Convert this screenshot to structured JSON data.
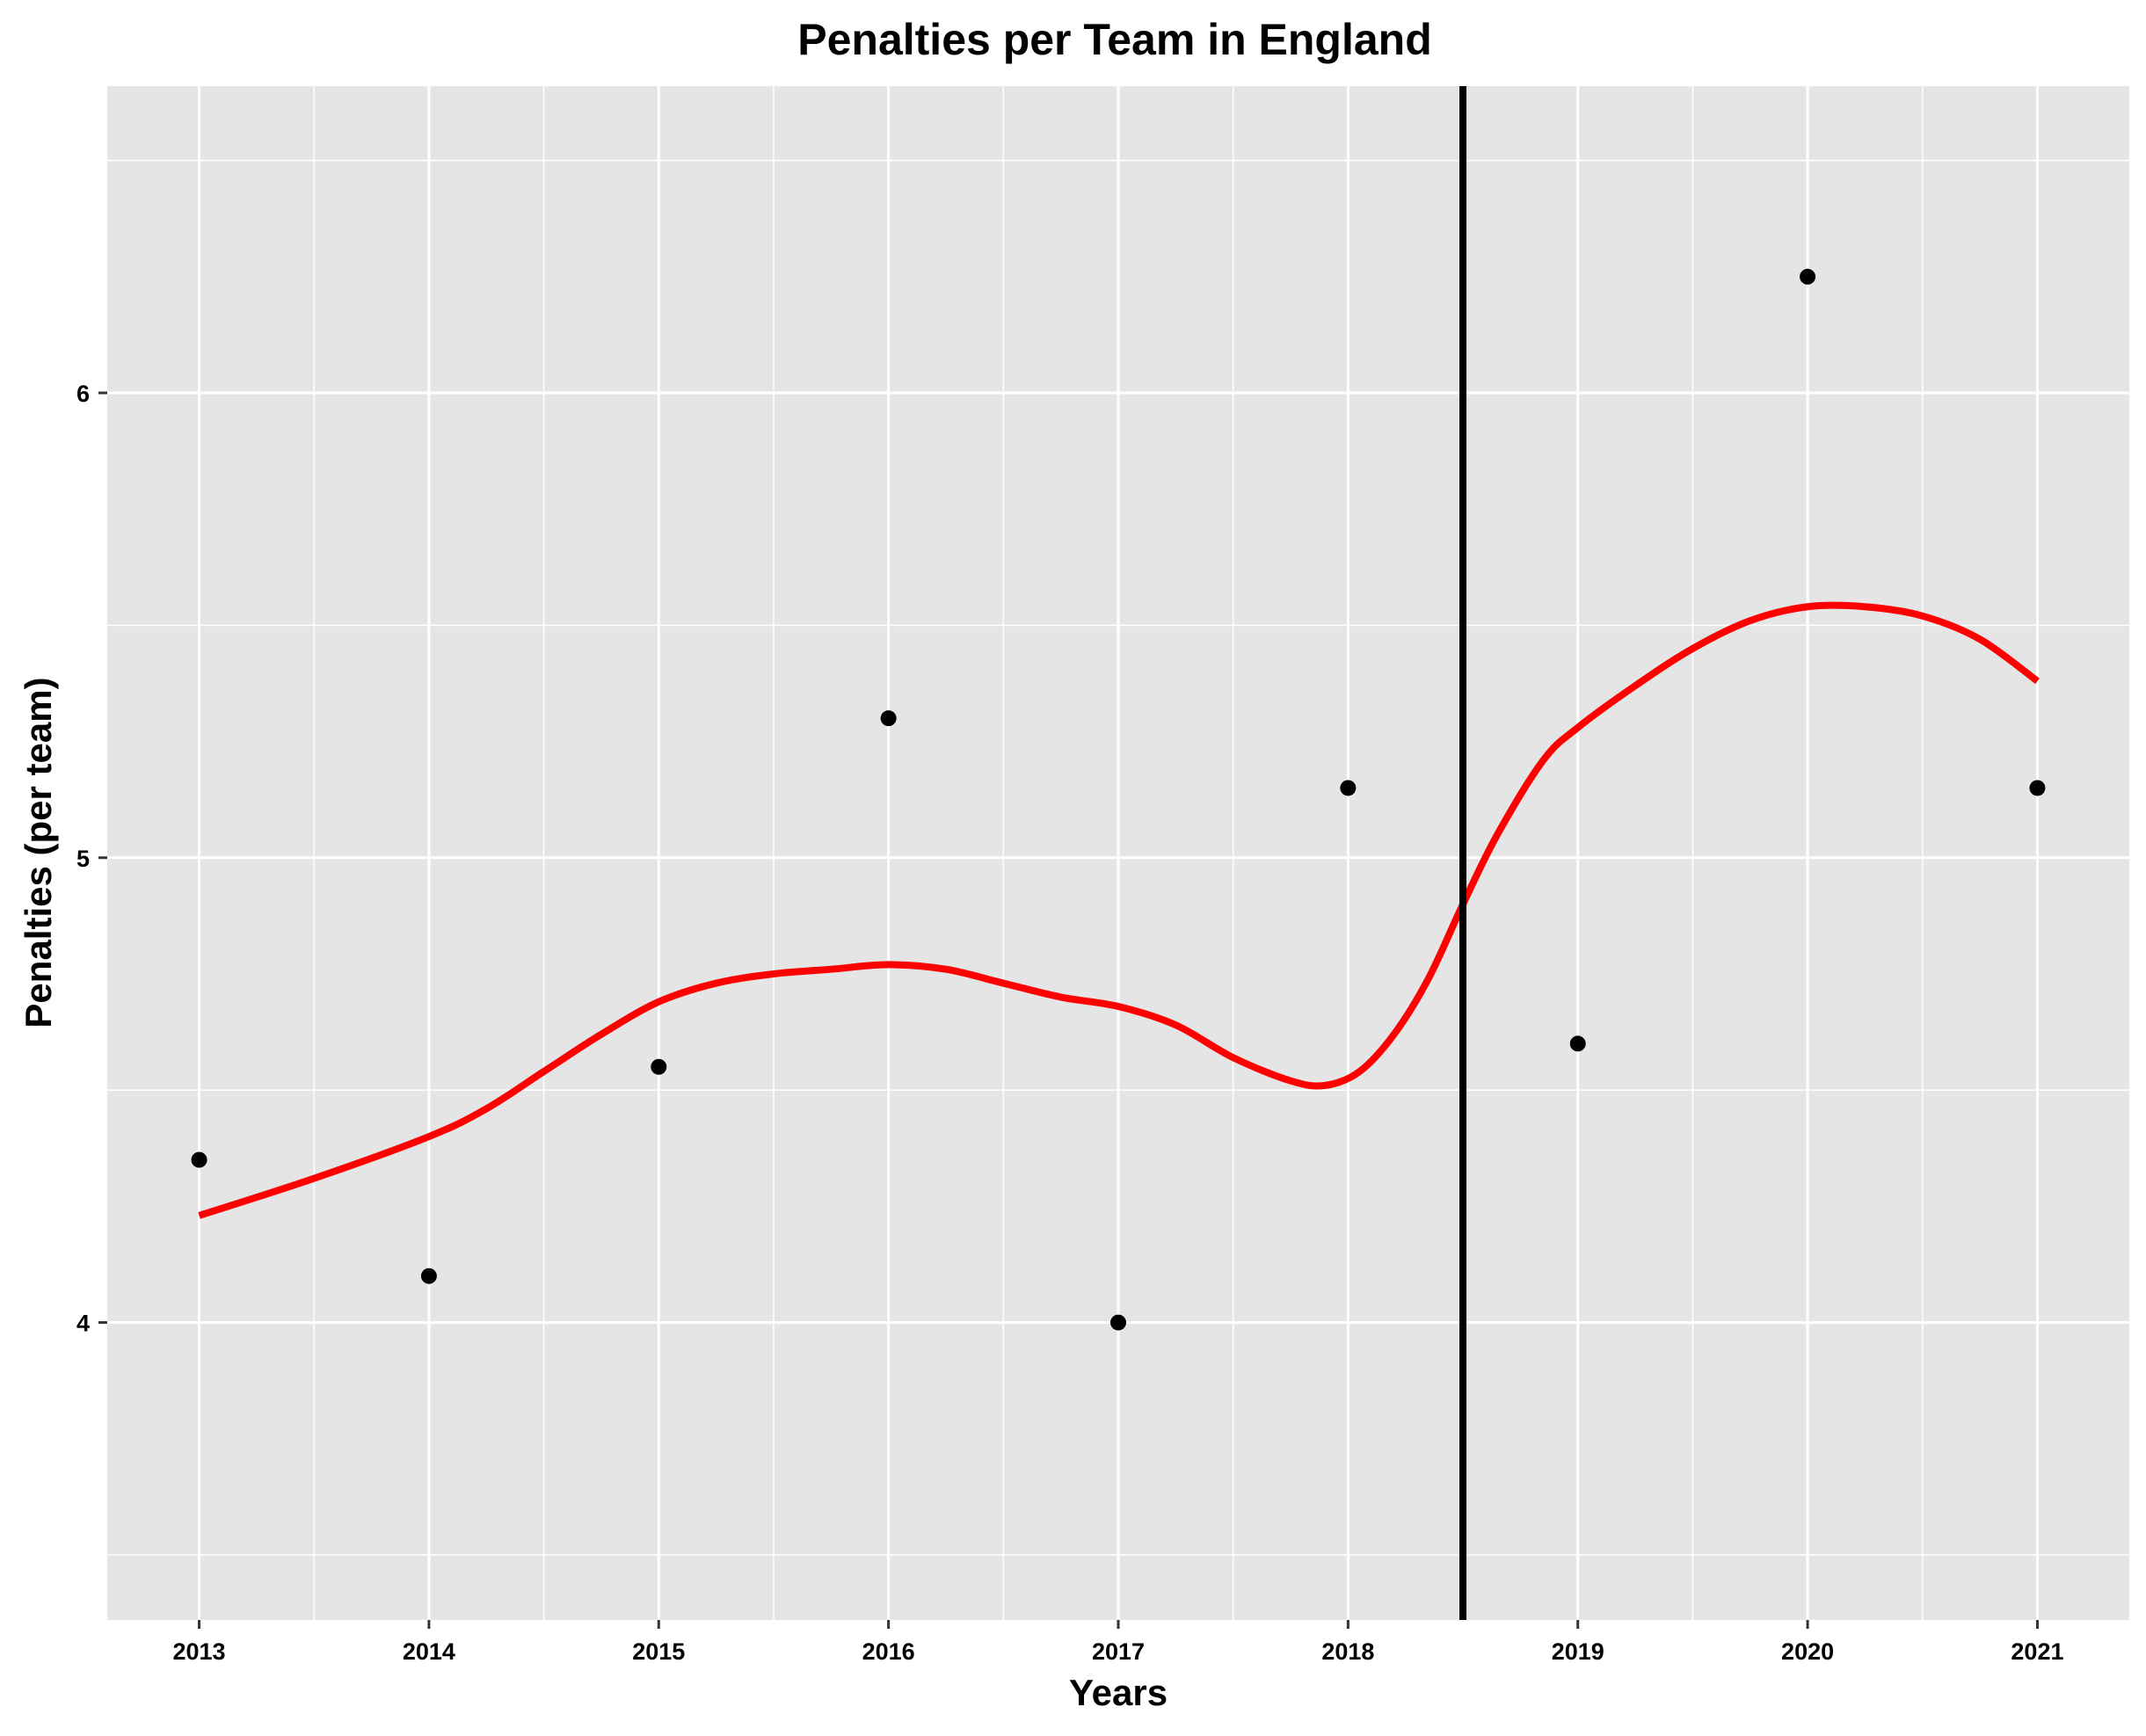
{
  "chart_data": {
    "type": "scatter",
    "title": "Penalties per Team in England",
    "xlabel": "Years",
    "ylabel": "Penalties (per team)",
    "x_ticks": [
      "2013",
      "2014",
      "2015",
      "2016",
      "2017",
      "2018",
      "2019",
      "2020",
      "2021"
    ],
    "y_ticks": [
      "4",
      "5",
      "6"
    ],
    "xlim": [
      2012.6,
      2021.4
    ],
    "ylim": [
      3.36,
      6.66
    ],
    "grid": true,
    "series": [
      {
        "kind": "points",
        "color": "#000000",
        "points": [
          {
            "x": 2013,
            "y": 4.35
          },
          {
            "x": 2014,
            "y": 4.1
          },
          {
            "x": 2015,
            "y": 4.55
          },
          {
            "x": 2016,
            "y": 5.3
          },
          {
            "x": 2017,
            "y": 4.0
          },
          {
            "x": 2018,
            "y": 5.15
          },
          {
            "x": 2019,
            "y": 4.6
          },
          {
            "x": 2020,
            "y": 6.25
          },
          {
            "x": 2021,
            "y": 5.15
          }
        ]
      },
      {
        "kind": "smooth-line",
        "color": "#ff0000",
        "points": [
          {
            "x": 2013.0,
            "y": 4.23
          },
          {
            "x": 2013.5,
            "y": 4.31
          },
          {
            "x": 2014.0,
            "y": 4.4
          },
          {
            "x": 2014.25,
            "y": 4.46
          },
          {
            "x": 2014.5,
            "y": 4.54
          },
          {
            "x": 2014.75,
            "y": 4.62
          },
          {
            "x": 2015.0,
            "y": 4.69
          },
          {
            "x": 2015.25,
            "y": 4.73
          },
          {
            "x": 2015.5,
            "y": 4.75
          },
          {
            "x": 2015.75,
            "y": 4.76
          },
          {
            "x": 2016.0,
            "y": 4.77
          },
          {
            "x": 2016.25,
            "y": 4.76
          },
          {
            "x": 2016.5,
            "y": 4.73
          },
          {
            "x": 2016.75,
            "y": 4.7
          },
          {
            "x": 2017.0,
            "y": 4.68
          },
          {
            "x": 2017.25,
            "y": 4.64
          },
          {
            "x": 2017.5,
            "y": 4.57
          },
          {
            "x": 2017.75,
            "y": 4.52
          },
          {
            "x": 2017.9,
            "y": 4.51
          },
          {
            "x": 2018.05,
            "y": 4.54
          },
          {
            "x": 2018.2,
            "y": 4.62
          },
          {
            "x": 2018.35,
            "y": 4.74
          },
          {
            "x": 2018.5,
            "y": 4.9
          },
          {
            "x": 2018.65,
            "y": 5.05
          },
          {
            "x": 2018.85,
            "y": 5.21
          },
          {
            "x": 2019.0,
            "y": 5.28
          },
          {
            "x": 2019.25,
            "y": 5.37
          },
          {
            "x": 2019.5,
            "y": 5.45
          },
          {
            "x": 2019.75,
            "y": 5.51
          },
          {
            "x": 2020.0,
            "y": 5.54
          },
          {
            "x": 2020.25,
            "y": 5.54
          },
          {
            "x": 2020.5,
            "y": 5.52
          },
          {
            "x": 2020.75,
            "y": 5.47
          },
          {
            "x": 2021.0,
            "y": 5.38
          }
        ]
      }
    ],
    "vline": {
      "x": 2018.5,
      "color": "#000000"
    }
  }
}
